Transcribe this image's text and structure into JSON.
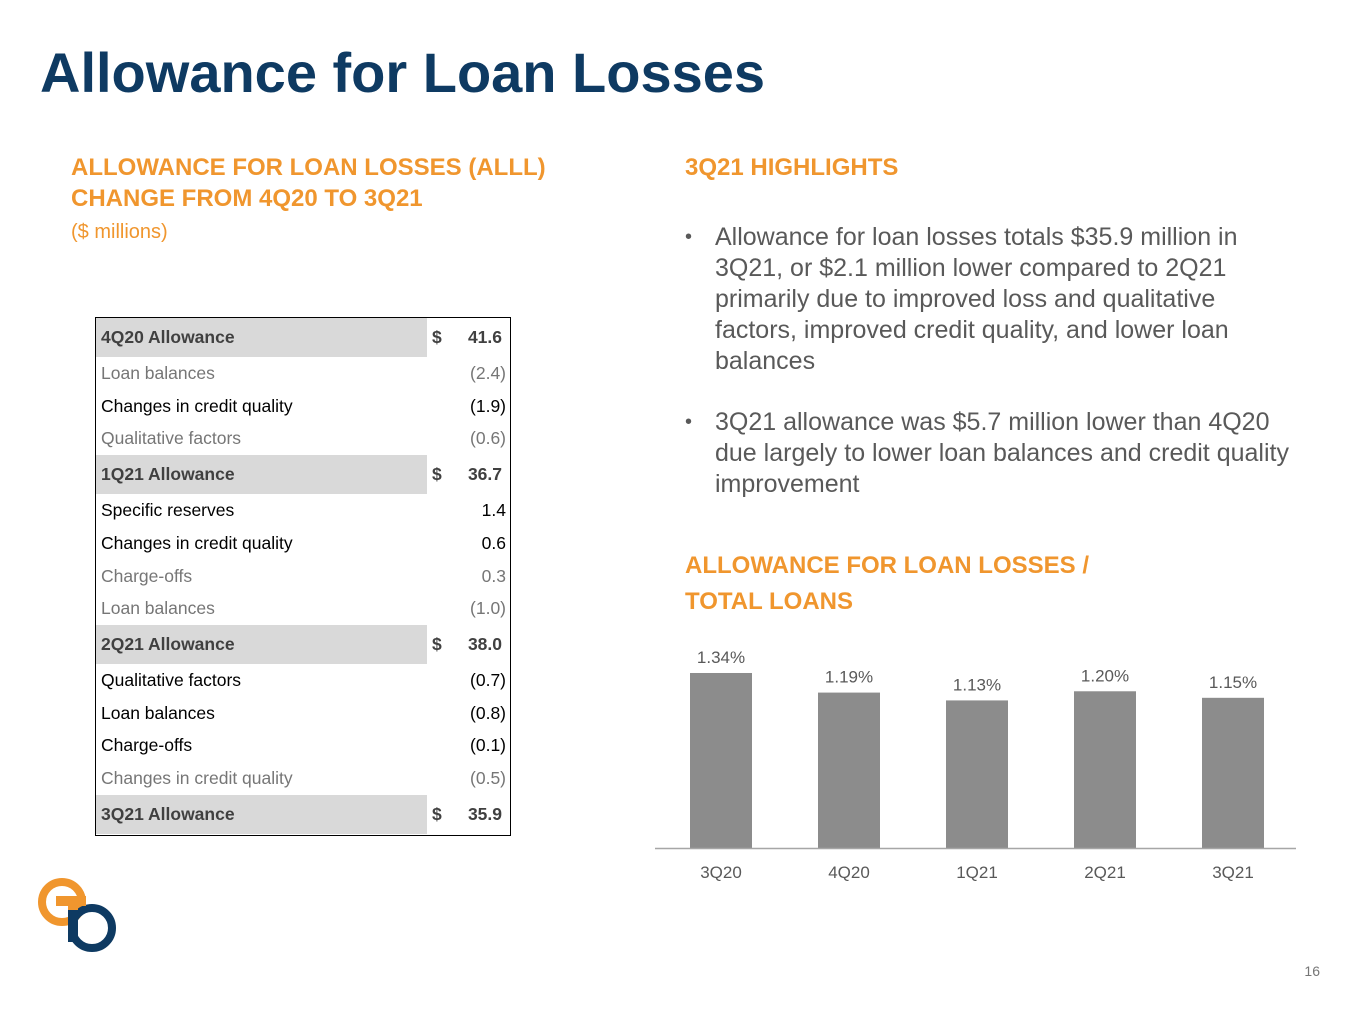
{
  "title": "Allowance for Loan Losses",
  "left_section": {
    "heading_line1": "ALLOWANCE FOR LOAN LOSSES (ALLL)",
    "heading_line2": "CHANGE FROM 4Q20 TO 3Q21",
    "unit_note": "($ millions)"
  },
  "table": {
    "rows": [
      {
        "label": "4Q20 Allowance",
        "currency": "$",
        "value": "41.6",
        "type": "subtotal"
      },
      {
        "label": "Loan balances",
        "currency": "",
        "value": "(2.4)",
        "type": "grey"
      },
      {
        "label": "Changes in credit quality",
        "currency": "",
        "value": "(1.9)",
        "type": "black"
      },
      {
        "label": "Qualitative factors",
        "currency": "",
        "value": "(0.6)",
        "type": "grey"
      },
      {
        "label": "1Q21 Allowance",
        "currency": "$",
        "value": "36.7",
        "type": "subtotal"
      },
      {
        "label": "Specific reserves",
        "currency": "",
        "value": "1.4",
        "type": "black"
      },
      {
        "label": "Changes in credit quality",
        "currency": "",
        "value": "0.6",
        "type": "black"
      },
      {
        "label": "Charge-offs",
        "currency": "",
        "value": "0.3",
        "type": "grey"
      },
      {
        "label": "Loan balances",
        "currency": "",
        "value": "(1.0)",
        "type": "grey"
      },
      {
        "label": "2Q21 Allowance",
        "currency": "$",
        "value": "38.0",
        "type": "subtotal"
      },
      {
        "label": "Qualitative factors",
        "currency": "",
        "value": "(0.7)",
        "type": "black"
      },
      {
        "label": "Loan balances",
        "currency": "",
        "value": "(0.8)",
        "type": "black"
      },
      {
        "label": "Charge-offs",
        "currency": "",
        "value": "(0.1)",
        "type": "black"
      },
      {
        "label": "Changes in credit quality",
        "currency": "",
        "value": "(0.5)",
        "type": "grey"
      },
      {
        "label": "3Q21 Allowance",
        "currency": "$",
        "value": "35.9",
        "type": "subtotal"
      }
    ]
  },
  "highlights": {
    "heading": "3Q21 HIGHLIGHTS",
    "bullet_symbol": "•",
    "bullets": [
      "Allowance for loan losses totals $35.9 million in 3Q21, or $2.1 million lower compared to 2Q21 primarily due to improved loss and qualitative factors, improved credit quality, and lower loan balances",
      "3Q21 allowance was $5.7 million lower than 4Q20 due largely to lower loan balances and credit quality improvement"
    ]
  },
  "chart_heading_line1": "ALLOWANCE FOR LOAN LOSSES /",
  "chart_heading_line2": "TOTAL LOANS",
  "chart_data": {
    "type": "bar",
    "categories": [
      "3Q20",
      "4Q20",
      "1Q21",
      "2Q21",
      "3Q21"
    ],
    "values": [
      1.34,
      1.19,
      1.13,
      1.2,
      1.15
    ],
    "data_labels": [
      "1.34%",
      "1.19%",
      "1.13%",
      "1.20%",
      "1.15%"
    ],
    "title": "",
    "xlabel": "",
    "ylabel": "",
    "grid": false,
    "bar_color": "#8c8c8c"
  },
  "page_number": "16",
  "colors": {
    "title": "#0e3a62",
    "accent": "#f0962e",
    "subtotal_fill": "#d9d9d9"
  }
}
